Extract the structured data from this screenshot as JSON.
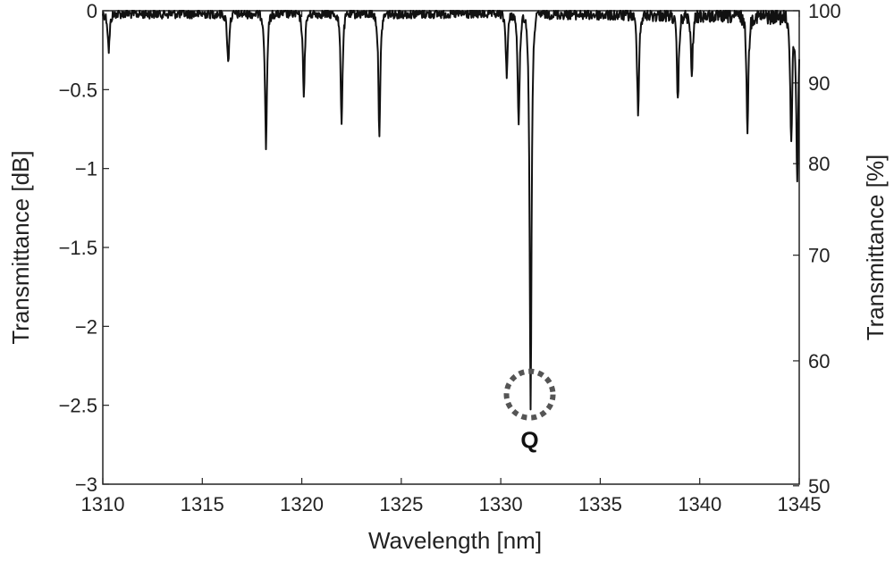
{
  "chart_data": {
    "type": "line",
    "xlabel": "Wavelength [nm]",
    "ylabel": "Transmittance [dB]",
    "ylabel_right": "Transmittance [%]",
    "xlim": [
      1310,
      1345
    ],
    "ylim": [
      -3,
      0
    ],
    "x_ticks": [
      1310,
      1315,
      1320,
      1325,
      1330,
      1335,
      1340,
      1345
    ],
    "x_tick_labels": [
      "1310",
      "1315",
      "1320",
      "1325",
      "1330",
      "1335",
      "1340",
      "1345"
    ],
    "y_ticks": [
      0,
      -0.5,
      -1,
      -1.5,
      -2,
      -2.5,
      -3
    ],
    "y_tick_labels": [
      "0",
      "−0.5",
      "−1",
      "−1.5",
      "−2",
      "−2.5",
      "−3"
    ],
    "y2_ticks": [
      100,
      90,
      80,
      70,
      60,
      50
    ],
    "y2_tick_labels": [
      "100",
      "90",
      "80",
      "70",
      "60",
      "50"
    ],
    "y2_scale": "percent = 100 * 10^(dB/10)",
    "grid": false,
    "line_color": "#111111",
    "series": [
      {
        "baseline_noise_db": [
          -0.08,
          0
        ],
        "dips": [
          {
            "x": 1310.3,
            "y": -0.25
          },
          {
            "x": 1316.3,
            "y": -0.33
          },
          {
            "x": 1318.2,
            "y": -0.86
          },
          {
            "x": 1320.1,
            "y": -0.52
          },
          {
            "x": 1322.0,
            "y": -0.7
          },
          {
            "x": 1323.9,
            "y": -0.78
          },
          {
            "x": 1330.3,
            "y": -0.4
          },
          {
            "x": 1330.9,
            "y": -0.74
          },
          {
            "x": 1331.5,
            "y": -2.5
          },
          {
            "x": 1336.9,
            "y": -0.62
          },
          {
            "x": 1338.9,
            "y": -0.57
          },
          {
            "x": 1339.6,
            "y": -0.4
          },
          {
            "x": 1342.4,
            "y": -0.73
          },
          {
            "x": 1344.6,
            "y": -0.81
          },
          {
            "x": 1344.9,
            "y": -1.07
          }
        ]
      }
    ],
    "annotations": [
      {
        "text": "Q",
        "x": 1331.5,
        "y": -2.5,
        "marker": "dotted-circle",
        "marker_color": "#555555"
      }
    ]
  }
}
